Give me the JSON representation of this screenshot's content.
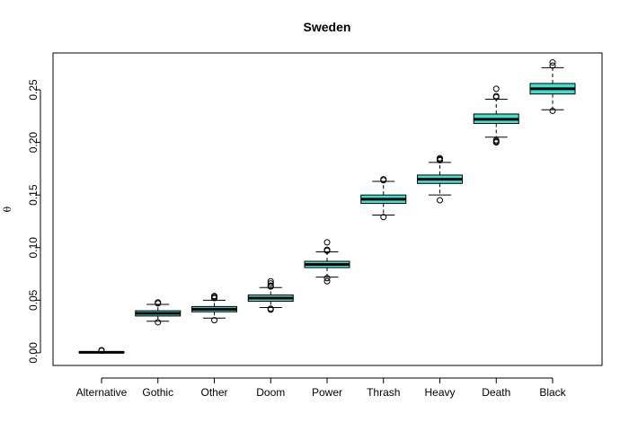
{
  "chart_data": {
    "type": "boxplot",
    "title": "Sweden",
    "ylabel": "θ",
    "xlabel": "",
    "ylim": [
      -0.012,
      0.285
    ],
    "yticks": [
      0.0,
      0.05,
      0.1,
      0.15,
      0.2,
      0.25
    ],
    "ytick_labels": [
      "0.00",
      "0.05",
      "0.10",
      "0.15",
      "0.20",
      "0.25"
    ],
    "box_color": "#40E0D0",
    "grid": false,
    "categories": [
      "Alternative",
      "Gothic",
      "Other",
      "Doom",
      "Power",
      "Thrash",
      "Heavy",
      "Death",
      "Black"
    ],
    "boxes": [
      {
        "whisker_low": 0.0,
        "q1": 0.0,
        "median": 0.0005,
        "q3": 0.001,
        "whisker_high": 0.001,
        "outliers": [
          0.002,
          0.0025
        ]
      },
      {
        "whisker_low": 0.03,
        "q1": 0.035,
        "median": 0.0375,
        "q3": 0.04,
        "whisker_high": 0.046,
        "outliers": [
          0.029,
          0.047,
          0.048
        ]
      },
      {
        "whisker_low": 0.033,
        "q1": 0.039,
        "median": 0.0415,
        "q3": 0.044,
        "whisker_high": 0.05,
        "outliers": [
          0.031,
          0.052,
          0.053,
          0.054
        ]
      },
      {
        "whisker_low": 0.043,
        "q1": 0.049,
        "median": 0.052,
        "q3": 0.055,
        "whisker_high": 0.062,
        "outliers": [
          0.041,
          0.042,
          0.063,
          0.064,
          0.066,
          0.068
        ]
      },
      {
        "whisker_low": 0.072,
        "q1": 0.081,
        "median": 0.084,
        "q3": 0.087,
        "whisker_high": 0.096,
        "outliers": [
          0.068,
          0.071,
          0.097,
          0.098,
          0.105
        ]
      },
      {
        "whisker_low": 0.131,
        "q1": 0.142,
        "median": 0.146,
        "q3": 0.15,
        "whisker_high": 0.163,
        "outliers": [
          0.129,
          0.164,
          0.165
        ]
      },
      {
        "whisker_low": 0.15,
        "q1": 0.161,
        "median": 0.165,
        "q3": 0.169,
        "whisker_high": 0.181,
        "outliers": [
          0.145,
          0.183,
          0.184,
          0.185
        ]
      },
      {
        "whisker_low": 0.205,
        "q1": 0.218,
        "median": 0.222,
        "q3": 0.227,
        "whisker_high": 0.241,
        "outliers": [
          0.2,
          0.201,
          0.202,
          0.243,
          0.244,
          0.251
        ]
      },
      {
        "whisker_low": 0.231,
        "q1": 0.246,
        "median": 0.251,
        "q3": 0.256,
        "whisker_high": 0.271,
        "outliers": [
          0.23,
          0.273,
          0.276
        ]
      }
    ]
  }
}
